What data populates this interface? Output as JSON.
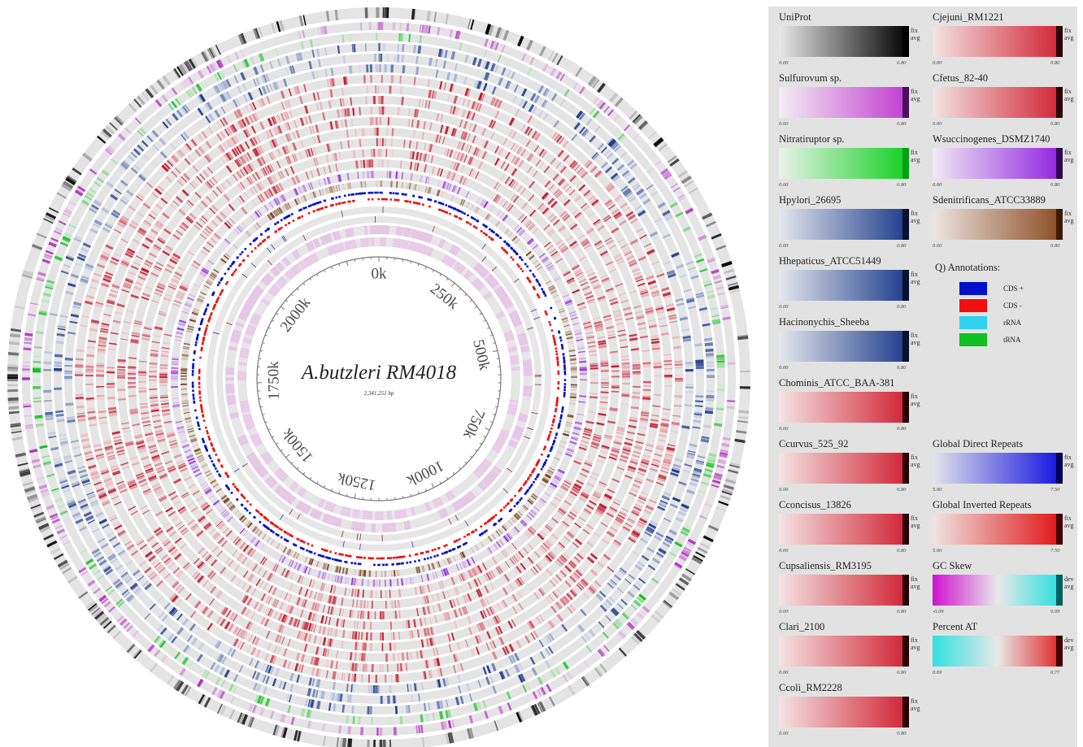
{
  "genome": {
    "name": "A.butzleri RM4018",
    "length_label": "2,341,251 bp",
    "ring_labels": [
      "0k",
      "250k",
      "500k",
      "750k",
      "1000k",
      "1250k",
      "1500k",
      "1750k",
      "2000k"
    ]
  },
  "legend": {
    "items": [
      {
        "name": "UniProt",
        "colors": [
          "#e8e8e8",
          "#000000"
        ],
        "end": "#000000",
        "tags": [
          "fix",
          "avg"
        ],
        "min": "0.00",
        "max": "0.80"
      },
      {
        "name": "Cjejuni_RM1221",
        "colors": [
          "#f4e4e4",
          "#d02030"
        ],
        "end": "#2a0008",
        "tags": [
          "fix",
          "avg"
        ],
        "min": "0.00",
        "max": "0.80"
      },
      {
        "name": "Sulfurovum sp.",
        "colors": [
          "#f4eef4",
          "#c03ad0"
        ],
        "end": "#4a1060",
        "tags": [
          "fix",
          "avg"
        ],
        "min": "0.00",
        "max": "0.80"
      },
      {
        "name": "Cfetus_82-40",
        "colors": [
          "#f4e4e4",
          "#d02030"
        ],
        "end": "#2a0008",
        "tags": [
          "fix",
          "avg"
        ],
        "min": "0.00",
        "max": "0.80"
      },
      {
        "name": "Nitratiruptor sp.",
        "colors": [
          "#eaf2ea",
          "#10d020"
        ],
        "end": "#00a010",
        "tags": [
          "fix",
          "avg"
        ],
        "min": "0.00",
        "max": "0.80"
      },
      {
        "name": "Wsuccinogenes_DSMZ1740",
        "colors": [
          "#f0eaf4",
          "#9020e0"
        ],
        "end": "#300850",
        "tags": [
          "fix",
          "avg"
        ],
        "min": "0.00",
        "max": "0.80"
      },
      {
        "name": "Hpylori_26695",
        "colors": [
          "#e6e8ee",
          "#1a3a8a"
        ],
        "end": "#0a1030",
        "tags": [
          "fix",
          "avg"
        ],
        "min": "0.00",
        "max": "0.80"
      },
      {
        "name": "Sdenitrificans_ATCC33889",
        "colors": [
          "#eee6e2",
          "#8a4a20"
        ],
        "end": "#3a1a04",
        "tags": [
          "fix",
          "avg"
        ],
        "min": "0.00",
        "max": "0.80"
      },
      {
        "name": "Hhepaticus_ATCC51449",
        "colors": [
          "#e6e8ee",
          "#1a3a8a"
        ],
        "end": "#0a1030",
        "tags": [
          "fix",
          "avg"
        ],
        "min": "0.00",
        "max": "0.80"
      },
      {
        "name": "Hacinonychis_Sheeba",
        "colors": [
          "#e6e8ee",
          "#1a3a8a"
        ],
        "end": "#0a1030",
        "tags": [
          "fix",
          "avg"
        ],
        "min": "0.00",
        "max": "0.80"
      },
      {
        "name": "Chominis_ATCC_BAA-381",
        "colors": [
          "#f4e4e4",
          "#d02030"
        ],
        "end": "#2a0008",
        "tags": [
          "fix",
          "avg"
        ],
        "min": "0.00",
        "max": "0.80"
      },
      {
        "name": "Ccurvus_525_92",
        "colors": [
          "#f4e4e4",
          "#d02030"
        ],
        "end": "#2a0008",
        "tags": [
          "fix",
          "avg"
        ],
        "min": "0.00",
        "max": "0.80"
      },
      {
        "name": "Global Direct Repeats",
        "colors": [
          "#e4e4ea",
          "#1010e0"
        ],
        "end": "#000050",
        "tags": [
          "fix",
          "avg"
        ],
        "min": "5.00",
        "max": "7.50"
      },
      {
        "name": "Cconcisus_13826",
        "colors": [
          "#f4e4e4",
          "#d02030"
        ],
        "end": "#2a0008",
        "tags": [
          "fix",
          "avg"
        ],
        "min": "0.00",
        "max": "0.80"
      },
      {
        "name": "Global Inverted Repeats",
        "colors": [
          "#f0e4e4",
          "#e01010"
        ],
        "end": "#400000",
        "tags": [
          "fix",
          "avg"
        ],
        "min": "5.00",
        "max": "7.50"
      },
      {
        "name": "Cupsaliensis_RM3195",
        "colors": [
          "#f4e4e4",
          "#d02030"
        ],
        "end": "#2a0008",
        "tags": [
          "fix",
          "avg"
        ],
        "min": "0.00",
        "max": "0.80"
      },
      {
        "name": "GC Skew",
        "colors": [
          "#d010d0",
          "#e8e8e8",
          "#20e0e0"
        ],
        "end": "#006060",
        "tags": [
          "dev",
          "avg"
        ],
        "min": "-0.09",
        "max": "0.09"
      },
      {
        "name": "Clari_2100",
        "colors": [
          "#f4e4e4",
          "#d02030"
        ],
        "end": "#2a0008",
        "tags": [
          "fix",
          "avg"
        ],
        "min": "0.00",
        "max": "0.80"
      },
      {
        "name": "Percent AT",
        "colors": [
          "#30e0e0",
          "#e8e8e8",
          "#e02020"
        ],
        "end": "#400000",
        "tags": [
          "dev",
          "avg"
        ],
        "min": "0.69",
        "max": "0.77"
      },
      {
        "name": "Ccoli_RM2228",
        "colors": [
          "#f4e4e4",
          "#d02030"
        ],
        "end": "#2a0008",
        "tags": [
          "fix",
          "avg"
        ],
        "min": "0.00",
        "max": "0.80"
      }
    ],
    "annotations": {
      "title": "Q) Annotations:",
      "entries": [
        {
          "label": "CDS +",
          "color": "#0010c8"
        },
        {
          "label": "CDS -",
          "color": "#f01010"
        },
        {
          "label": "rRNA",
          "color": "#30d0f0"
        },
        {
          "label": "tRNA",
          "color": "#10c020"
        }
      ]
    }
  }
}
